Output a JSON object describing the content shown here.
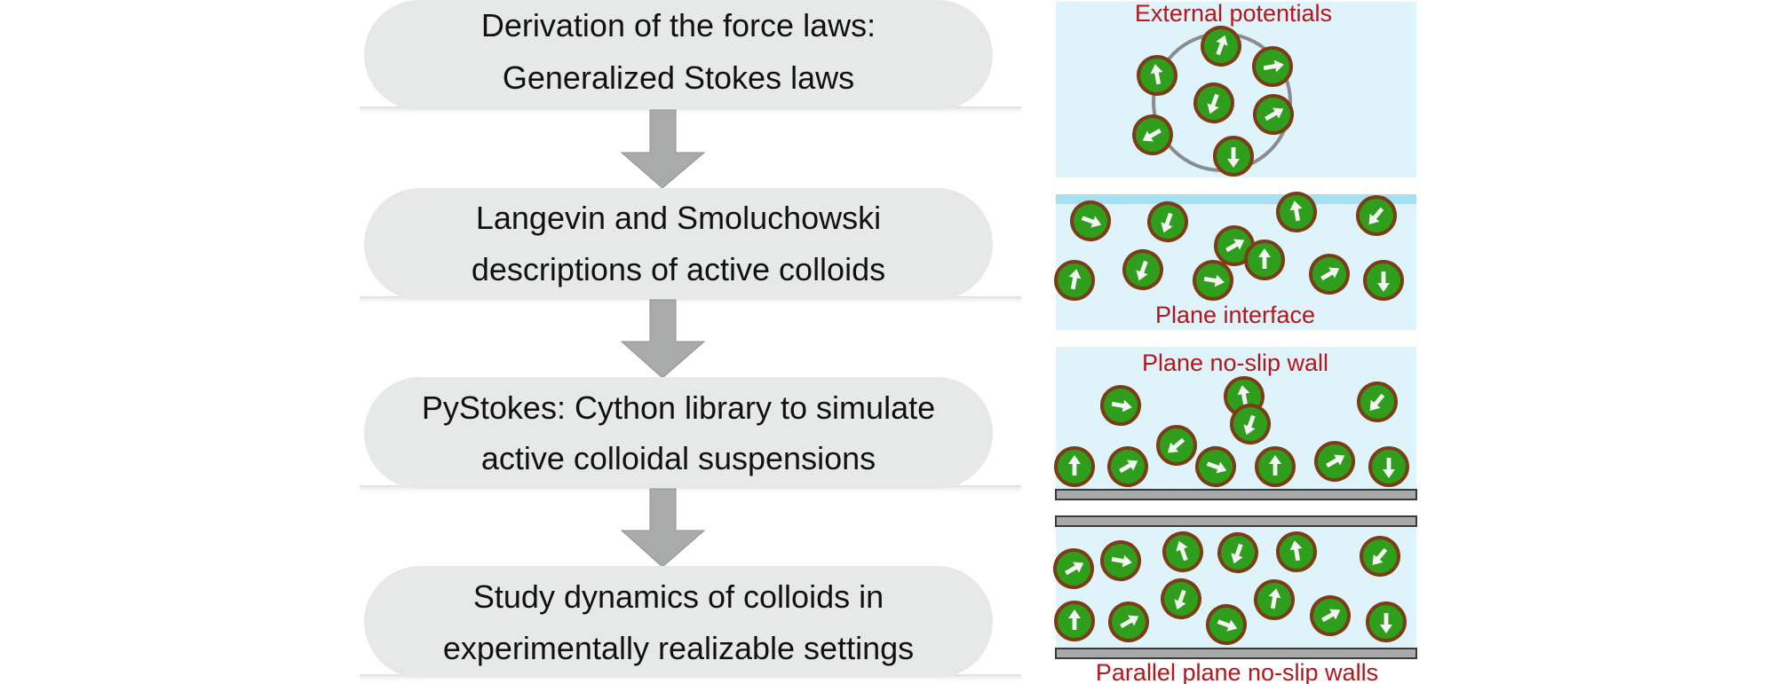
{
  "flowchart": {
    "steps": [
      {
        "line1": "Derivation of the force laws:",
        "line2": "Generalized Stokes laws"
      },
      {
        "line1": "Langevin and Smoluchowski",
        "line2": "descriptions of active colloids"
      },
      {
        "line1": "PyStokes: Cython library to simulate",
        "line2": "active colloidal suspensions"
      },
      {
        "line1": "Study dynamics of colloids in",
        "line2": "experimentally realizable settings"
      }
    ]
  },
  "panels": {
    "external_potentials": {
      "label": "External potentials"
    },
    "plane_interface": {
      "label": "Plane interface"
    },
    "plane_wall": {
      "label": "Plane no-slip wall"
    },
    "parallel_walls": {
      "label": "Parallel plane no-slip walls"
    }
  },
  "colors": {
    "capsule_fill": "#e7e8e8",
    "arrow_fill": "#a9abab",
    "panel_fill": "#def4fa",
    "interface_line": "#a5e0f3",
    "wall_fill": "#a7a9aa",
    "particle_fill": "#2e9e1c",
    "particle_rim": "#7b3c16",
    "label_color": "#b3161c"
  }
}
